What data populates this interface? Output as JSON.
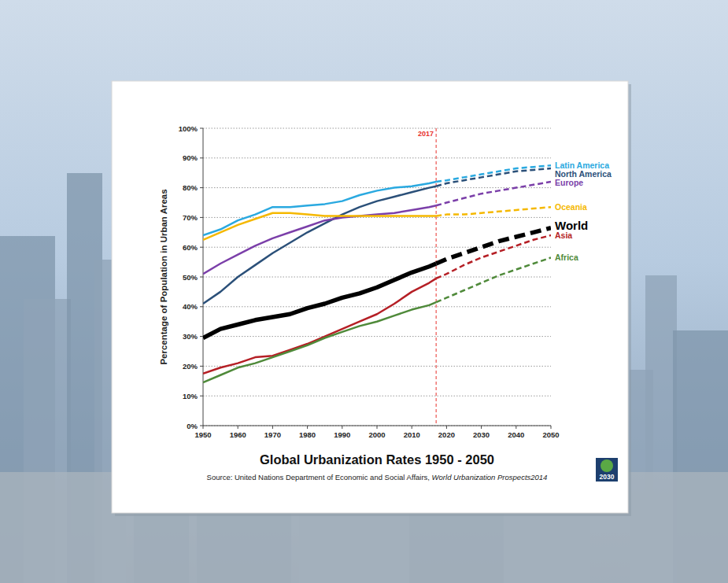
{
  "chart_data": {
    "type": "line",
    "title": "Global Urbanization Rates 1950 - 2050",
    "source": {
      "text": "Source: United Nations Department of Economic and Social Affairs, ",
      "publication": "World Urbanization Prospects2014"
    },
    "y_label": "Percentage of Population in Urban Areas",
    "logo_text": "2030",
    "annotations": [
      {
        "x": 2017,
        "label": "2017",
        "color": "#e8302c"
      }
    ],
    "x": [
      1950,
      1955,
      1960,
      1965,
      1970,
      1975,
      1980,
      1985,
      1990,
      1995,
      2000,
      2005,
      2010,
      2015,
      2017,
      2020,
      2025,
      2030,
      2035,
      2040,
      2045,
      2050
    ],
    "xlim": [
      1950,
      2050
    ],
    "xticks": [
      1950,
      1960,
      1970,
      1980,
      1990,
      2000,
      2010,
      2020,
      2030,
      2040,
      2050
    ],
    "ylim": [
      0,
      100
    ],
    "yticks": [
      {
        "value": 0,
        "label": "0%"
      },
      {
        "value": 10,
        "label": "10%"
      },
      {
        "value": 20,
        "label": "20%"
      },
      {
        "value": 30,
        "label": "30%"
      },
      {
        "value": 40,
        "label": "40%"
      },
      {
        "value": 50,
        "label": "50%"
      },
      {
        "value": 60,
        "label": "60%"
      },
      {
        "value": 70,
        "label": "70%"
      },
      {
        "value": 80,
        "label": "80%"
      },
      {
        "value": 90,
        "label": "90%"
      },
      {
        "value": 100,
        "label": "100%"
      }
    ],
    "grid": true,
    "series": [
      {
        "name": "Latin America",
        "color": "#2aa9e0",
        "line_style": "solid",
        "values": [
          64,
          66,
          69,
          71,
          73.5,
          73.5,
          74,
          74.5,
          75.5,
          77.5,
          79,
          80,
          80.5,
          81.5,
          82,
          82.5,
          83.5,
          84.5,
          85.5,
          86.5,
          87,
          87.5
        ]
      },
      {
        "name": "North America",
        "color": "#2b5079",
        "line_style": "solid",
        "values": [
          41,
          45,
          50,
          54,
          58,
          61.5,
          65,
          68,
          71,
          73.5,
          75.5,
          77,
          78.5,
          80,
          80.5,
          81.5,
          82.5,
          83.5,
          84.5,
          85.5,
          86,
          86.5
        ]
      },
      {
        "name": "Europe",
        "color": "#7b3fa9",
        "line_style": "solid",
        "values": [
          51,
          54.5,
          57.5,
          60.5,
          63,
          65,
          67,
          69,
          70,
          70.5,
          71,
          71.5,
          72.5,
          73.5,
          74,
          75,
          76.5,
          78,
          79,
          80,
          81,
          82
        ]
      },
      {
        "name": "Oceania",
        "color": "#f5b800",
        "line_style": "solid",
        "values": [
          62.5,
          65,
          67.5,
          69.5,
          71.5,
          71.5,
          71,
          70.5,
          70.5,
          70.5,
          70.5,
          70.5,
          70.5,
          70.5,
          70.5,
          71,
          71,
          71.5,
          72,
          72.5,
          73,
          73.5
        ]
      },
      {
        "name": "World",
        "color": "#000000",
        "line_style": "thick",
        "values": [
          29.5,
          32.5,
          34,
          35.5,
          36.5,
          37.5,
          39.5,
          41,
          43,
          44.5,
          46.5,
          49,
          51.5,
          53.5,
          54.5,
          56,
          58,
          60,
          62,
          63.5,
          65,
          66.5
        ]
      },
      {
        "name": "Asia",
        "color": "#b51f25",
        "line_style": "solid",
        "values": [
          17.5,
          19.5,
          21,
          23,
          23.5,
          25.5,
          27.5,
          30,
          32.5,
          35,
          37.5,
          41,
          45,
          48,
          49.5,
          51,
          54,
          56.5,
          58.5,
          60.5,
          62.5,
          64
        ]
      },
      {
        "name": "Africa",
        "color": "#4f8a3a",
        "line_style": "solid",
        "values": [
          14.5,
          17,
          19.5,
          21,
          23,
          25,
          27,
          29.5,
          31.5,
          33.5,
          35,
          37,
          39,
          40.5,
          41.5,
          43,
          45.5,
          48,
          50.5,
          52.5,
          54.5,
          56.5
        ]
      }
    ]
  }
}
